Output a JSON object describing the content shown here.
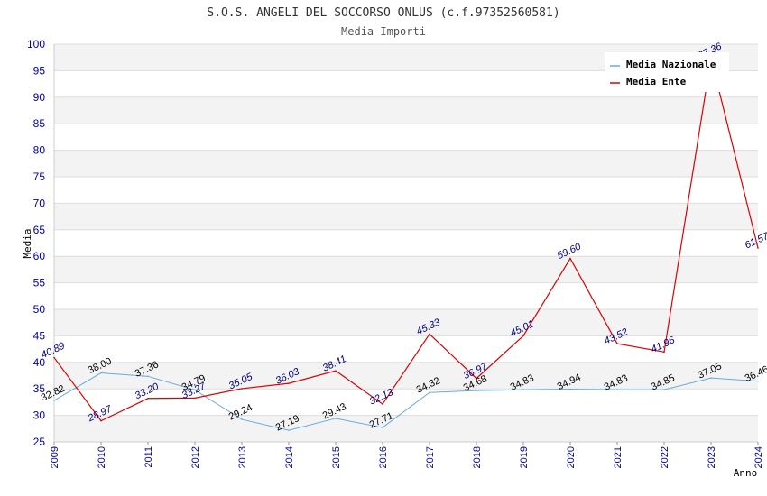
{
  "chart_data": {
    "type": "line",
    "title": "S.O.S. ANGELI DEL SOCCORSO ONLUS (c.f.97352560581)",
    "subtitle": "Media Importi",
    "xlabel": "Anno",
    "ylabel": "Media",
    "ylim": [
      25,
      100
    ],
    "yticks": [
      "25",
      "30",
      "35",
      "40",
      "45",
      "50",
      "55",
      "60",
      "65",
      "70",
      "75",
      "80",
      "85",
      "90",
      "95",
      "100"
    ],
    "categories": [
      "2009",
      "2010",
      "2011",
      "2012",
      "2013",
      "2014",
      "2015",
      "2016",
      "2017",
      "2018",
      "2019",
      "2020",
      "2021",
      "2022",
      "2023",
      "2024"
    ],
    "grid": true,
    "legend_position": "top-right",
    "series": [
      {
        "name": "Media Nazionale",
        "color": "#66aadd",
        "values": [
          32.82,
          38.0,
          37.36,
          34.79,
          29.24,
          27.19,
          29.43,
          27.71,
          34.32,
          34.68,
          34.83,
          34.94,
          34.83,
          34.85,
          37.05,
          36.46
        ],
        "labels": [
          "32.82",
          "38.00",
          "37.36",
          "34.79",
          "29.24",
          "27.19",
          "29.43",
          "27.71",
          "34.32",
          "34.68",
          "34.83",
          "34.94",
          "34.83",
          "34.85",
          "37.05",
          "36.46"
        ]
      },
      {
        "name": "Media Ente",
        "color": "#dd0000",
        "values": [
          40.89,
          28.97,
          33.2,
          33.27,
          35.05,
          36.03,
          38.41,
          32.13,
          45.33,
          36.97,
          45.01,
          59.6,
          43.52,
          41.96,
          97.36,
          61.57
        ],
        "labels": [
          "40.89",
          "28.97",
          "33.20",
          "33.27",
          "35.05",
          "36.03",
          "38.41",
          "32.13",
          "45.33",
          "36.97",
          "45.01",
          "59.60",
          "43.52",
          "41.96",
          "97.36",
          "61.57"
        ]
      }
    ]
  }
}
